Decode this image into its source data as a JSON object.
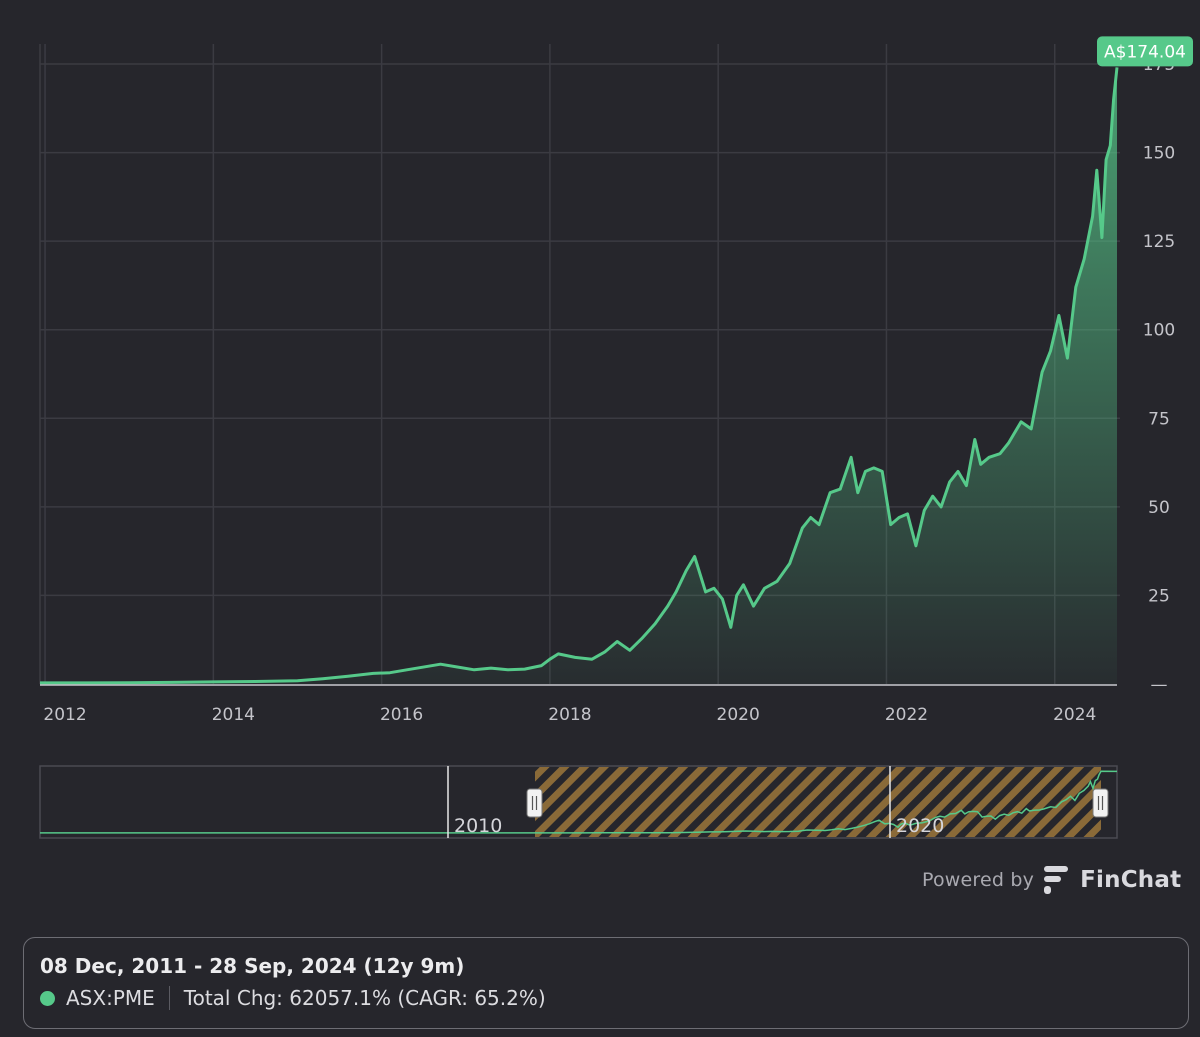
{
  "colors": {
    "background": "#26262c",
    "line": "#56c98a",
    "grid": "#3b3b42",
    "price_badge": "#56c98a",
    "navigator_hatch_light": "#8a6a38",
    "navigator_hatch_dark": "#26262c"
  },
  "chart_data": {
    "type": "area",
    "series": [
      {
        "name": "ASX:PME",
        "x": [
          2011.94,
          2012.5,
          2013.0,
          2013.5,
          2014.0,
          2014.5,
          2015.0,
          2015.3,
          2015.6,
          2015.9,
          2016.1,
          2016.3,
          2016.55,
          2016.7,
          2016.9,
          2017.1,
          2017.3,
          2017.5,
          2017.7,
          2017.9,
          2018.0,
          2018.1,
          2018.3,
          2018.5,
          2018.65,
          2018.8,
          2018.95,
          2019.1,
          2019.25,
          2019.4,
          2019.5,
          2019.62,
          2019.72,
          2019.85,
          2019.95,
          2020.05,
          2020.15,
          2020.22,
          2020.3,
          2020.42,
          2020.55,
          2020.7,
          2020.85,
          2021.0,
          2021.1,
          2021.2,
          2021.33,
          2021.45,
          2021.58,
          2021.66,
          2021.75,
          2021.85,
          2021.95,
          2022.05,
          2022.15,
          2022.25,
          2022.35,
          2022.45,
          2022.55,
          2022.65,
          2022.75,
          2022.85,
          2022.95,
          2023.05,
          2023.12,
          2023.22,
          2023.35,
          2023.45,
          2023.6,
          2023.72,
          2023.85,
          2023.95,
          2024.05,
          2024.15,
          2024.25,
          2024.35,
          2024.45,
          2024.5,
          2024.56,
          2024.61,
          2024.66,
          2024.7,
          2024.74
        ],
        "values": [
          0.3,
          0.3,
          0.35,
          0.45,
          0.6,
          0.7,
          0.9,
          1.5,
          2.2,
          3.0,
          3.2,
          4.0,
          5.0,
          5.6,
          4.8,
          4.0,
          4.5,
          4.0,
          4.2,
          5.2,
          7.0,
          8.5,
          7.5,
          7.0,
          9.0,
          12.0,
          9.5,
          13.0,
          17.0,
          22.0,
          26.0,
          32.0,
          36.0,
          26.0,
          27.0,
          24.0,
          16.0,
          25.0,
          28.0,
          22.0,
          27.0,
          29.0,
          34.0,
          44.0,
          47.0,
          45.0,
          54.0,
          55.0,
          64.0,
          54.0,
          60.0,
          61.0,
          60.0,
          45.0,
          47.0,
          48.0,
          39.0,
          49.0,
          53.0,
          50.0,
          57.0,
          60.0,
          56.0,
          69.0,
          62.0,
          64.0,
          65.0,
          68.0,
          74.0,
          72.0,
          88.0,
          94.0,
          104.0,
          92.0,
          112.0,
          120.0,
          132.0,
          145.0,
          126.0,
          148.0,
          152.0,
          165.0,
          174.04
        ]
      }
    ],
    "x_ticks": [
      "2012",
      "2014",
      "2016",
      "2018",
      "2020",
      "2022",
      "2024"
    ],
    "y_ticks": [
      "175",
      "150",
      "125",
      "100",
      "75",
      "50",
      "25",
      "—"
    ],
    "xlim": [
      2011.94,
      2024.74
    ],
    "ylim": [
      0,
      175
    ],
    "last_value_label": "A$174.04",
    "grid": true,
    "y_axis_side": "right"
  },
  "navigator": {
    "tick_labels": [
      "2010",
      "2020"
    ]
  },
  "branding": {
    "powered_by": "Powered by",
    "brand": "FinChat"
  },
  "summary": {
    "date_range": "08 Dec, 2011 - 28 Sep, 2024 (12y 9m)",
    "ticker": "ASX:PME",
    "total_change": "Total Chg: 62057.1% (CAGR: 65.2%)"
  }
}
